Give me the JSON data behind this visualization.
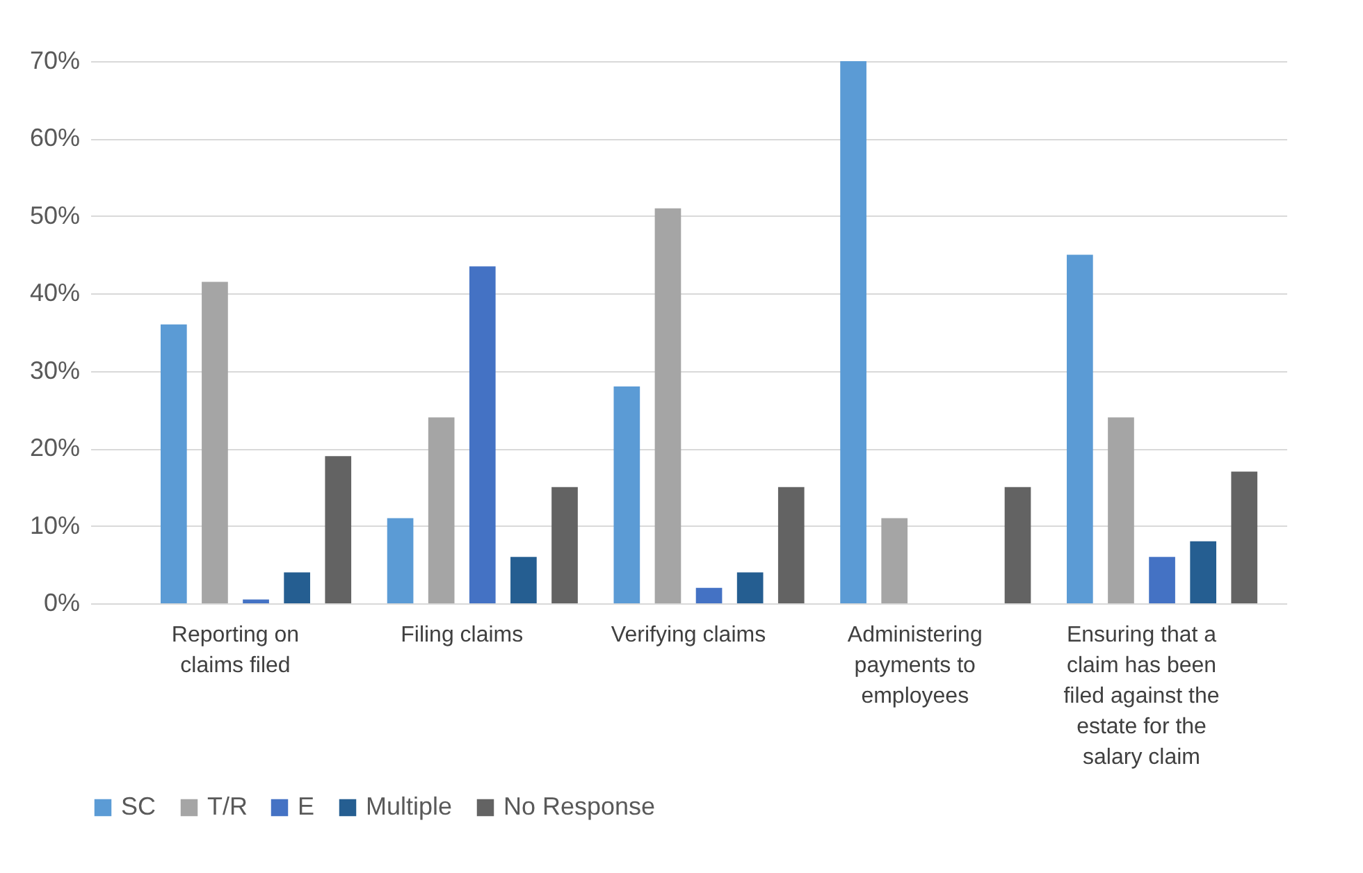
{
  "chart_data": {
    "type": "bar",
    "categories": [
      "Reporting on claims filed",
      "Filing claims",
      "Verifying claims",
      "Administering payments to employees",
      "Ensuring that a claim has been filed against the estate for the salary claim"
    ],
    "series": [
      {
        "name": "SC",
        "color": "#5b9bd5",
        "values": [
          36,
          11,
          28,
          70,
          45
        ]
      },
      {
        "name": "T/R",
        "color": "#a5a5a5",
        "values": [
          41.5,
          24,
          51,
          11,
          24
        ]
      },
      {
        "name": "E",
        "color": "#4472c4",
        "values": [
          0.5,
          43.5,
          2,
          0,
          6
        ]
      },
      {
        "name": "Multiple",
        "color": "#255e91",
        "values": [
          4,
          6,
          4,
          0,
          8
        ]
      },
      {
        "name": "No Response",
        "color": "#636363",
        "values": [
          19,
          15,
          15,
          15,
          17
        ]
      }
    ],
    "ylim": [
      0,
      70
    ],
    "yticks": [
      {
        "value": 0,
        "label": "0%"
      },
      {
        "value": 10,
        "label": "10%"
      },
      {
        "value": 20,
        "label": "20%"
      },
      {
        "value": 30,
        "label": "30%"
      },
      {
        "value": 40,
        "label": "40%"
      },
      {
        "value": 50,
        "label": "50%"
      },
      {
        "value": 60,
        "label": "60%"
      },
      {
        "value": 70,
        "label": "70%"
      }
    ],
    "grid": true,
    "legend": "bottom"
  }
}
